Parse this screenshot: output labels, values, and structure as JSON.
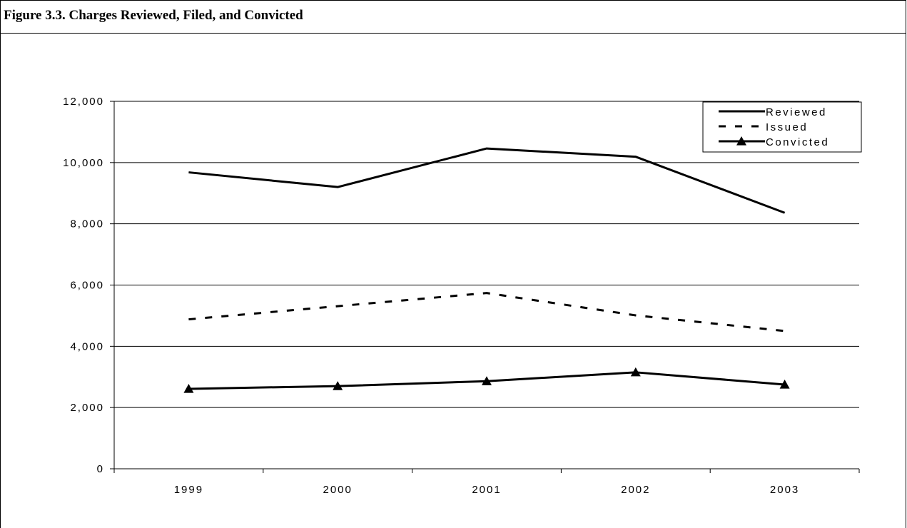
{
  "figure": {
    "title": "Figure 3.3. Charges Reviewed, Filed, and Convicted"
  },
  "chart_data": {
    "type": "line",
    "title": "Figure 3.3. Charges Reviewed, Filed, and Convicted",
    "xlabel": "",
    "ylabel": "",
    "categories": [
      "1999",
      "2000",
      "2001",
      "2002",
      "2003"
    ],
    "y_ticks": [
      "0",
      "2,000",
      "4,000",
      "6,000",
      "8,000",
      "10,000",
      "12,000"
    ],
    "ylim": [
      0,
      12000
    ],
    "grid": "horizontal",
    "legend_position": "top-right",
    "series": [
      {
        "name": "Reviewed",
        "style": "solid",
        "marker": "none",
        "color": "#000000",
        "values": [
          9680,
          9200,
          10460,
          10190,
          8360
        ]
      },
      {
        "name": "Issued",
        "style": "dashed",
        "marker": "none",
        "color": "#000000",
        "values": [
          4880,
          5310,
          5740,
          5010,
          4500
        ]
      },
      {
        "name": "Convicted",
        "style": "solid",
        "marker": "triangle",
        "color": "#000000",
        "values": [
          2610,
          2700,
          2860,
          3150,
          2750
        ]
      }
    ]
  }
}
